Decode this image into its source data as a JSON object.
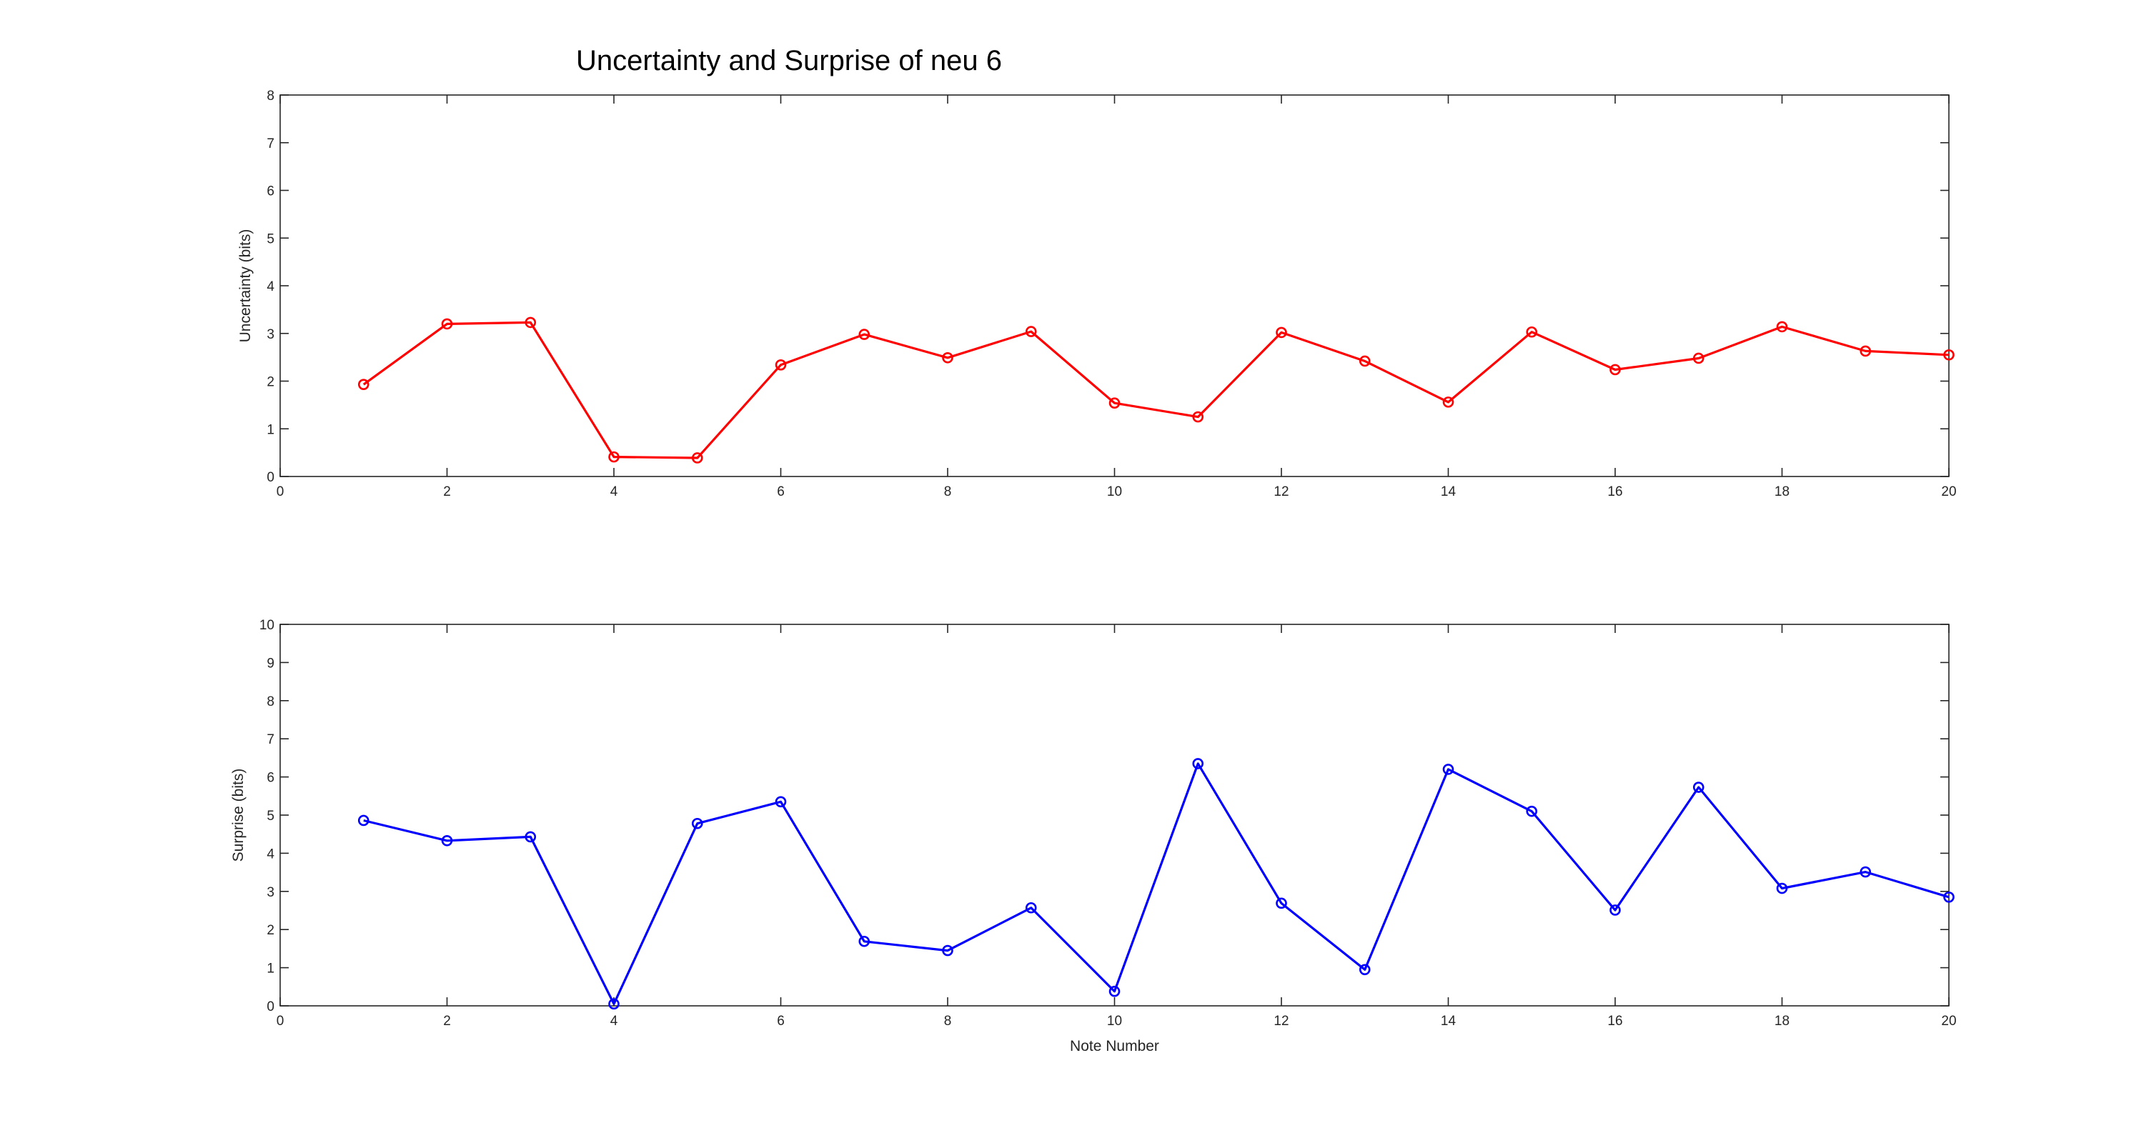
{
  "figure": {
    "title": "Uncertainty and Surprise of neu 6"
  },
  "chart_data": [
    {
      "type": "line",
      "title": "Uncertainty and Surprise of neu 6",
      "xlabel": "",
      "ylabel": "Uncertainty (bits)",
      "xlim": [
        0,
        20
      ],
      "ylim": [
        0,
        8
      ],
      "xticks": [
        0,
        2,
        4,
        6,
        8,
        10,
        12,
        14,
        16,
        18,
        20
      ],
      "yticks": [
        0,
        1,
        2,
        3,
        4,
        5,
        6,
        7,
        8
      ],
      "grid": false,
      "marker": "circle",
      "color": "#ff0000",
      "x": [
        1,
        2,
        3,
        4,
        5,
        6,
        7,
        8,
        9,
        10,
        11,
        12,
        13,
        14,
        15,
        16,
        17,
        18,
        19,
        20
      ],
      "y": [
        1.93,
        3.2,
        3.23,
        0.41,
        0.39,
        2.34,
        2.98,
        2.49,
        3.04,
        1.54,
        1.25,
        3.02,
        2.42,
        1.56,
        3.03,
        2.24,
        2.48,
        3.14,
        2.63,
        2.55
      ]
    },
    {
      "type": "line",
      "title": "",
      "xlabel": "Note Number",
      "ylabel": "Surprise (bits)",
      "xlim": [
        0,
        20
      ],
      "ylim": [
        0,
        10
      ],
      "xticks": [
        0,
        2,
        4,
        6,
        8,
        10,
        12,
        14,
        16,
        18,
        20
      ],
      "yticks": [
        0,
        1,
        2,
        3,
        4,
        5,
        6,
        7,
        8,
        9,
        10
      ],
      "grid": false,
      "marker": "circle",
      "color": "#0000ff",
      "x": [
        1,
        2,
        3,
        4,
        5,
        6,
        7,
        8,
        9,
        10,
        11,
        12,
        13,
        14,
        15,
        16,
        17,
        18,
        19,
        20
      ],
      "y": [
        4.86,
        4.33,
        4.43,
        0.05,
        4.78,
        5.35,
        1.69,
        1.45,
        2.57,
        0.38,
        6.35,
        2.69,
        0.95,
        6.2,
        5.1,
        2.51,
        5.73,
        3.08,
        3.51,
        2.85
      ]
    }
  ]
}
